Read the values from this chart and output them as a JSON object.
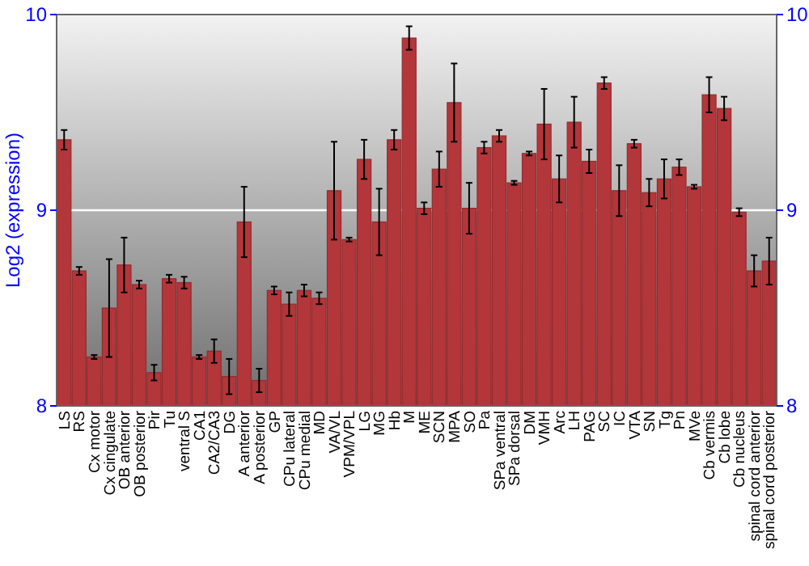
{
  "chart_data": {
    "type": "bar",
    "ylabel": "Log2 (expression)",
    "categories": [
      "LS",
      "RS",
      "Cx motor",
      "Cx cingulate",
      "OB anterior",
      "OB posterior",
      "Pir",
      "Tu",
      "ventral S",
      "CA1",
      "CA2/CA3",
      "DG",
      "A anterior",
      "A posterior",
      "GP",
      "CPu lateral",
      "CPu medial",
      "MD",
      "VA/VL",
      "VPM/VPL",
      "LG",
      "MG",
      "Hb",
      "M",
      "ME",
      "SCN",
      "MPA",
      "SO",
      "Pa",
      "SPa ventral",
      "SPa dorsal",
      "DM",
      "VMH",
      "Arc",
      "LH",
      "PAG",
      "SC",
      "IC",
      "VTA",
      "SN",
      "Tg",
      "Pn",
      "MVe",
      "Cb vermis",
      "Cb lobe",
      "Cb nucleus",
      "spinal cord anterior",
      "spinal cord posterior"
    ],
    "values": [
      9.36,
      8.69,
      8.25,
      8.5,
      8.72,
      8.62,
      8.17,
      8.65,
      8.63,
      8.25,
      8.28,
      8.15,
      8.94,
      8.13,
      8.59,
      8.52,
      8.59,
      8.55,
      9.1,
      8.85,
      9.26,
      8.94,
      9.36,
      9.88,
      9.01,
      9.21,
      9.55,
      9.01,
      9.32,
      9.38,
      9.14,
      9.29,
      9.44,
      9.16,
      9.45,
      9.25,
      9.65,
      9.1,
      9.34,
      9.09,
      9.16,
      9.22,
      9.12,
      9.59,
      9.52,
      8.99,
      8.69,
      8.74
    ],
    "errors": [
      0.05,
      0.02,
      0.01,
      0.25,
      0.14,
      0.02,
      0.04,
      0.02,
      0.03,
      0.01,
      0.06,
      0.09,
      0.18,
      0.06,
      0.02,
      0.06,
      0.03,
      0.03,
      0.25,
      0.01,
      0.1,
      0.17,
      0.05,
      0.06,
      0.03,
      0.09,
      0.2,
      0.13,
      0.03,
      0.03,
      0.01,
      0.01,
      0.18,
      0.12,
      0.13,
      0.06,
      0.03,
      0.13,
      0.02,
      0.07,
      0.1,
      0.04,
      0.01,
      0.09,
      0.06,
      0.02,
      0.08,
      0.12
    ],
    "color": "#b3363a",
    "ylim": [
      8,
      10
    ],
    "yticks": [
      8,
      9,
      10
    ],
    "y2lim": [
      8,
      10
    ],
    "y2ticks": [
      8,
      9,
      10
    ],
    "grid": "y"
  }
}
